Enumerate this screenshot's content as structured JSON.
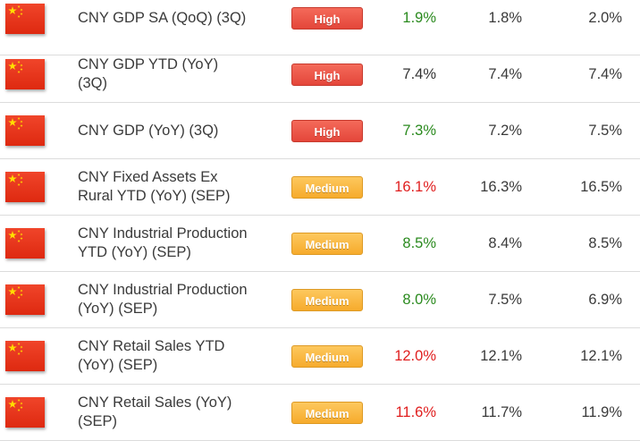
{
  "colors": {
    "high": "#e4463a",
    "medium": "#f6ab2c",
    "better": "#2a8a1e",
    "worse": "#e01e1e",
    "flag_red": "#de2910",
    "flag_star": "#ffde00"
  },
  "rows": [
    {
      "flag": "china-flag-icon",
      "event": [
        "CNY GDP SA (QoQ) (3Q)"
      ],
      "importance": "High",
      "actual": "1.9%",
      "actual_status": "better",
      "forecast": "1.8%",
      "previous": "2.0%"
    },
    {
      "flag": "china-flag-icon",
      "event": [
        "CNY GDP YTD (YoY)",
        "(3Q)"
      ],
      "importance": "High",
      "actual": "7.4%",
      "actual_status": "neutral",
      "forecast": "7.4%",
      "previous": "7.4%"
    },
    {
      "flag": "china-flag-icon",
      "event": [
        "CNY GDP (YoY) (3Q)"
      ],
      "importance": "High",
      "actual": "7.3%",
      "actual_status": "better",
      "forecast": "7.2%",
      "previous": "7.5%"
    },
    {
      "flag": "china-flag-icon",
      "event": [
        "CNY Fixed Assets Ex",
        "Rural YTD (YoY) (SEP)"
      ],
      "importance": "Medium",
      "actual": "16.1%",
      "actual_status": "worse",
      "forecast": "16.3%",
      "previous": "16.5%"
    },
    {
      "flag": "china-flag-icon",
      "event": [
        "CNY Industrial Production",
        "YTD (YoY) (SEP)"
      ],
      "importance": "Medium",
      "actual": "8.5%",
      "actual_status": "better",
      "forecast": "8.4%",
      "previous": "8.5%"
    },
    {
      "flag": "china-flag-icon",
      "event": [
        "CNY Industrial Production",
        "(YoY) (SEP)"
      ],
      "importance": "Medium",
      "actual": "8.0%",
      "actual_status": "better",
      "forecast": "7.5%",
      "previous": "6.9%"
    },
    {
      "flag": "china-flag-icon",
      "event": [
        "CNY Retail Sales YTD",
        "(YoY) (SEP)"
      ],
      "importance": "Medium",
      "actual": "12.0%",
      "actual_status": "worse",
      "forecast": "12.1%",
      "previous": "12.1%"
    },
    {
      "flag": "china-flag-icon",
      "event": [
        "CNY Retail Sales (YoY)",
        "(SEP)"
      ],
      "importance": "Medium",
      "actual": "11.6%",
      "actual_status": "worse",
      "forecast": "11.7%",
      "previous": "11.9%"
    }
  ]
}
